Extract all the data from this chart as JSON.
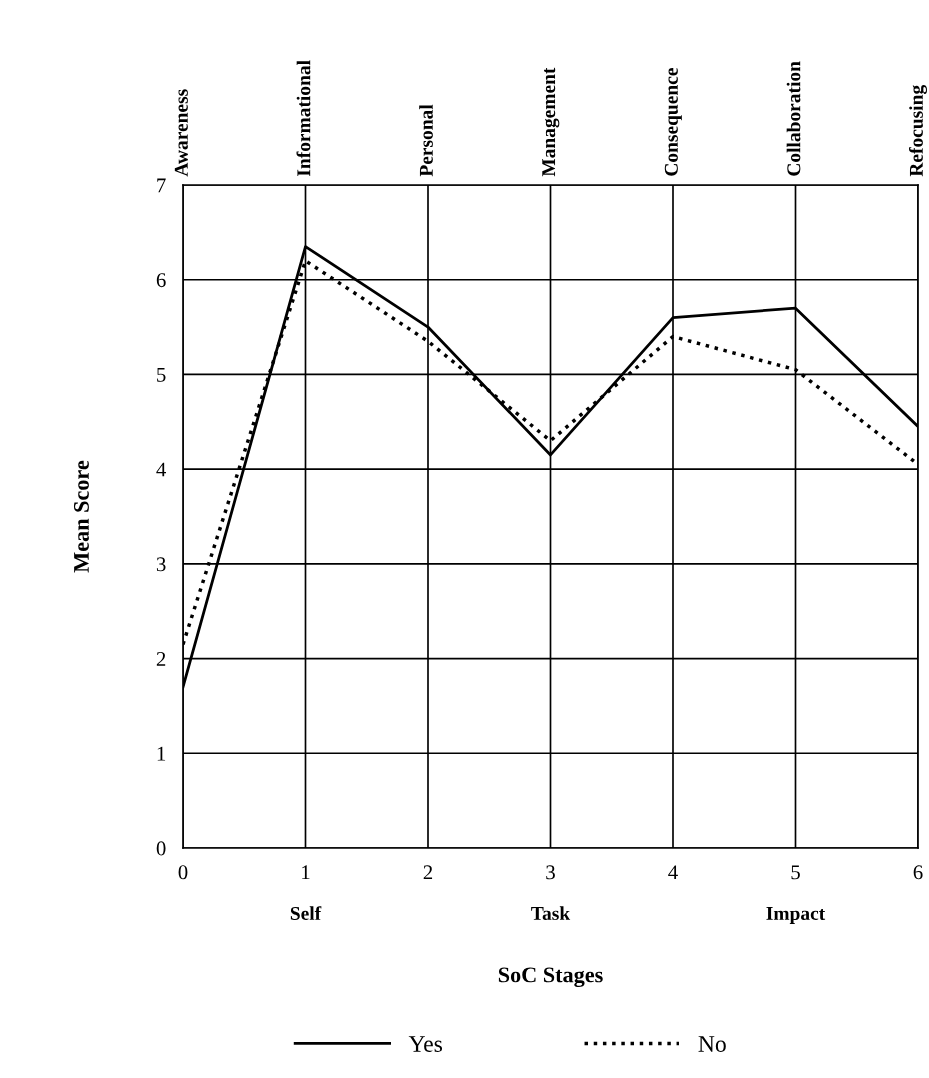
{
  "chart_data": {
    "type": "line",
    "xlabel": "SoC Stages",
    "ylabel": "Mean Score",
    "categories": [
      "0",
      "1",
      "2",
      "3",
      "4",
      "5",
      "6"
    ],
    "series": [
      {
        "name": "Yes",
        "color": "#000000",
        "line_style": "solid",
        "values": [
          1.7,
          6.35,
          5.5,
          4.15,
          5.6,
          5.7,
          4.45
        ]
      },
      {
        "name": "No",
        "color": "#000000",
        "line_style": "dotted",
        "values": [
          2.15,
          6.2,
          5.35,
          4.3,
          5.4,
          5.05,
          4.05
        ]
      }
    ],
    "ylim": [
      0,
      7
    ],
    "yticks": [
      0,
      1,
      2,
      3,
      4,
      5,
      6,
      7
    ],
    "annotations": [
      "Awareness",
      "Informational",
      "Personal",
      "Management",
      "Consequence",
      "Collaboration",
      "Refocusing",
      "Self",
      "Task",
      "Impact"
    ],
    "grid": true,
    "legend": "bottom",
    "marker": "none"
  }
}
